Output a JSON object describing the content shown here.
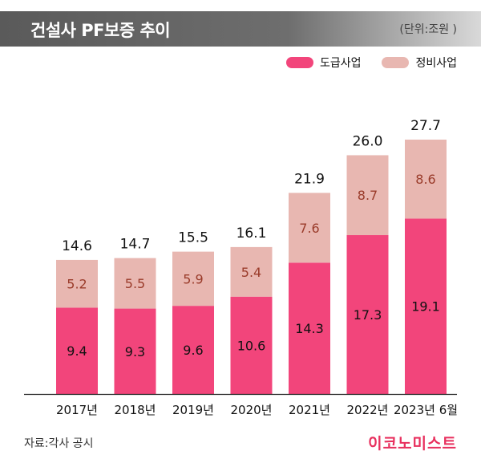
{
  "header": {
    "title": "건설사 PF보증 추이",
    "unit": "(단위:조원 )"
  },
  "footer": {
    "source": "자료:각사 공시",
    "brand": "이코노미스트"
  },
  "colors": {
    "series_lower": "#f2457b",
    "series_upper": "#e8b7b1"
  },
  "chart_data": {
    "type": "bar",
    "stacked": true,
    "categories": [
      "2017년",
      "2018년",
      "2019년",
      "2020년",
      "2021년",
      "2022년",
      "2023년 6월"
    ],
    "series": [
      {
        "name": "도급사업",
        "values": [
          9.4,
          9.3,
          9.6,
          10.6,
          14.3,
          17.3,
          19.1
        ]
      },
      {
        "name": "정비사업",
        "values": [
          5.2,
          5.5,
          5.9,
          5.4,
          7.6,
          8.7,
          8.6
        ]
      }
    ],
    "totals": [
      14.6,
      14.7,
      15.5,
      16.1,
      21.9,
      26.0,
      27.7
    ],
    "data_label_text": {
      "lower": [
        "9.4",
        "9.3",
        "9.6",
        "10.6",
        "14.3",
        "17.3",
        "19.1"
      ],
      "upper": [
        "5.2",
        "5.5",
        "5.9",
        "5.4",
        "7.6",
        "8.7",
        "8.6"
      ],
      "totals": [
        "14.6",
        "14.7",
        "15.5",
        "16.1",
        "21.9",
        "26.0",
        "27.7"
      ]
    },
    "ylim": [
      0,
      27.7
    ],
    "legend_position": "top-right",
    "grid": false
  }
}
